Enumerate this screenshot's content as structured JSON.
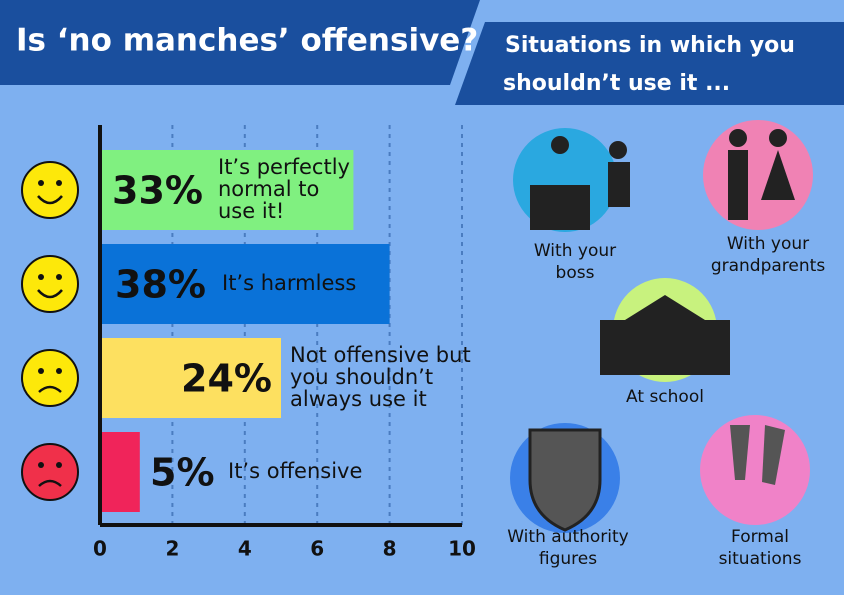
{
  "header": {
    "title": "Is ‘no manches’ offensive?",
    "subtitle": [
      "Situations in which you",
      "shouldn’t use it ..."
    ]
  },
  "chart_data": {
    "type": "bar",
    "orientation": "horizontal",
    "values": [
      7,
      8,
      5,
      1.1
    ],
    "colors": [
      "#80f080",
      "#0a72d8",
      "#fde060",
      "#f0245a"
    ],
    "percent_labels": [
      "33%",
      "38%",
      "24%",
      "5%"
    ],
    "descriptions": [
      [
        "It’s perfectly",
        "normal to",
        "use it!"
      ],
      [
        "It’s harmless"
      ],
      [
        "Not offensive but",
        "you shouldn’t",
        "always use it"
      ],
      [
        "It’s offensive"
      ]
    ],
    "xlim": [
      0,
      10
    ],
    "xticks": [
      0,
      2,
      4,
      6,
      8,
      10
    ],
    "grid": true
  },
  "situations": [
    {
      "label": [
        "With your",
        "boss"
      ]
    },
    {
      "label": [
        "With your",
        "grandparents"
      ]
    },
    {
      "label": [
        "At school"
      ]
    },
    {
      "label": [
        "With authority",
        "figures"
      ]
    },
    {
      "label": [
        "Formal",
        "situations"
      ]
    }
  ]
}
